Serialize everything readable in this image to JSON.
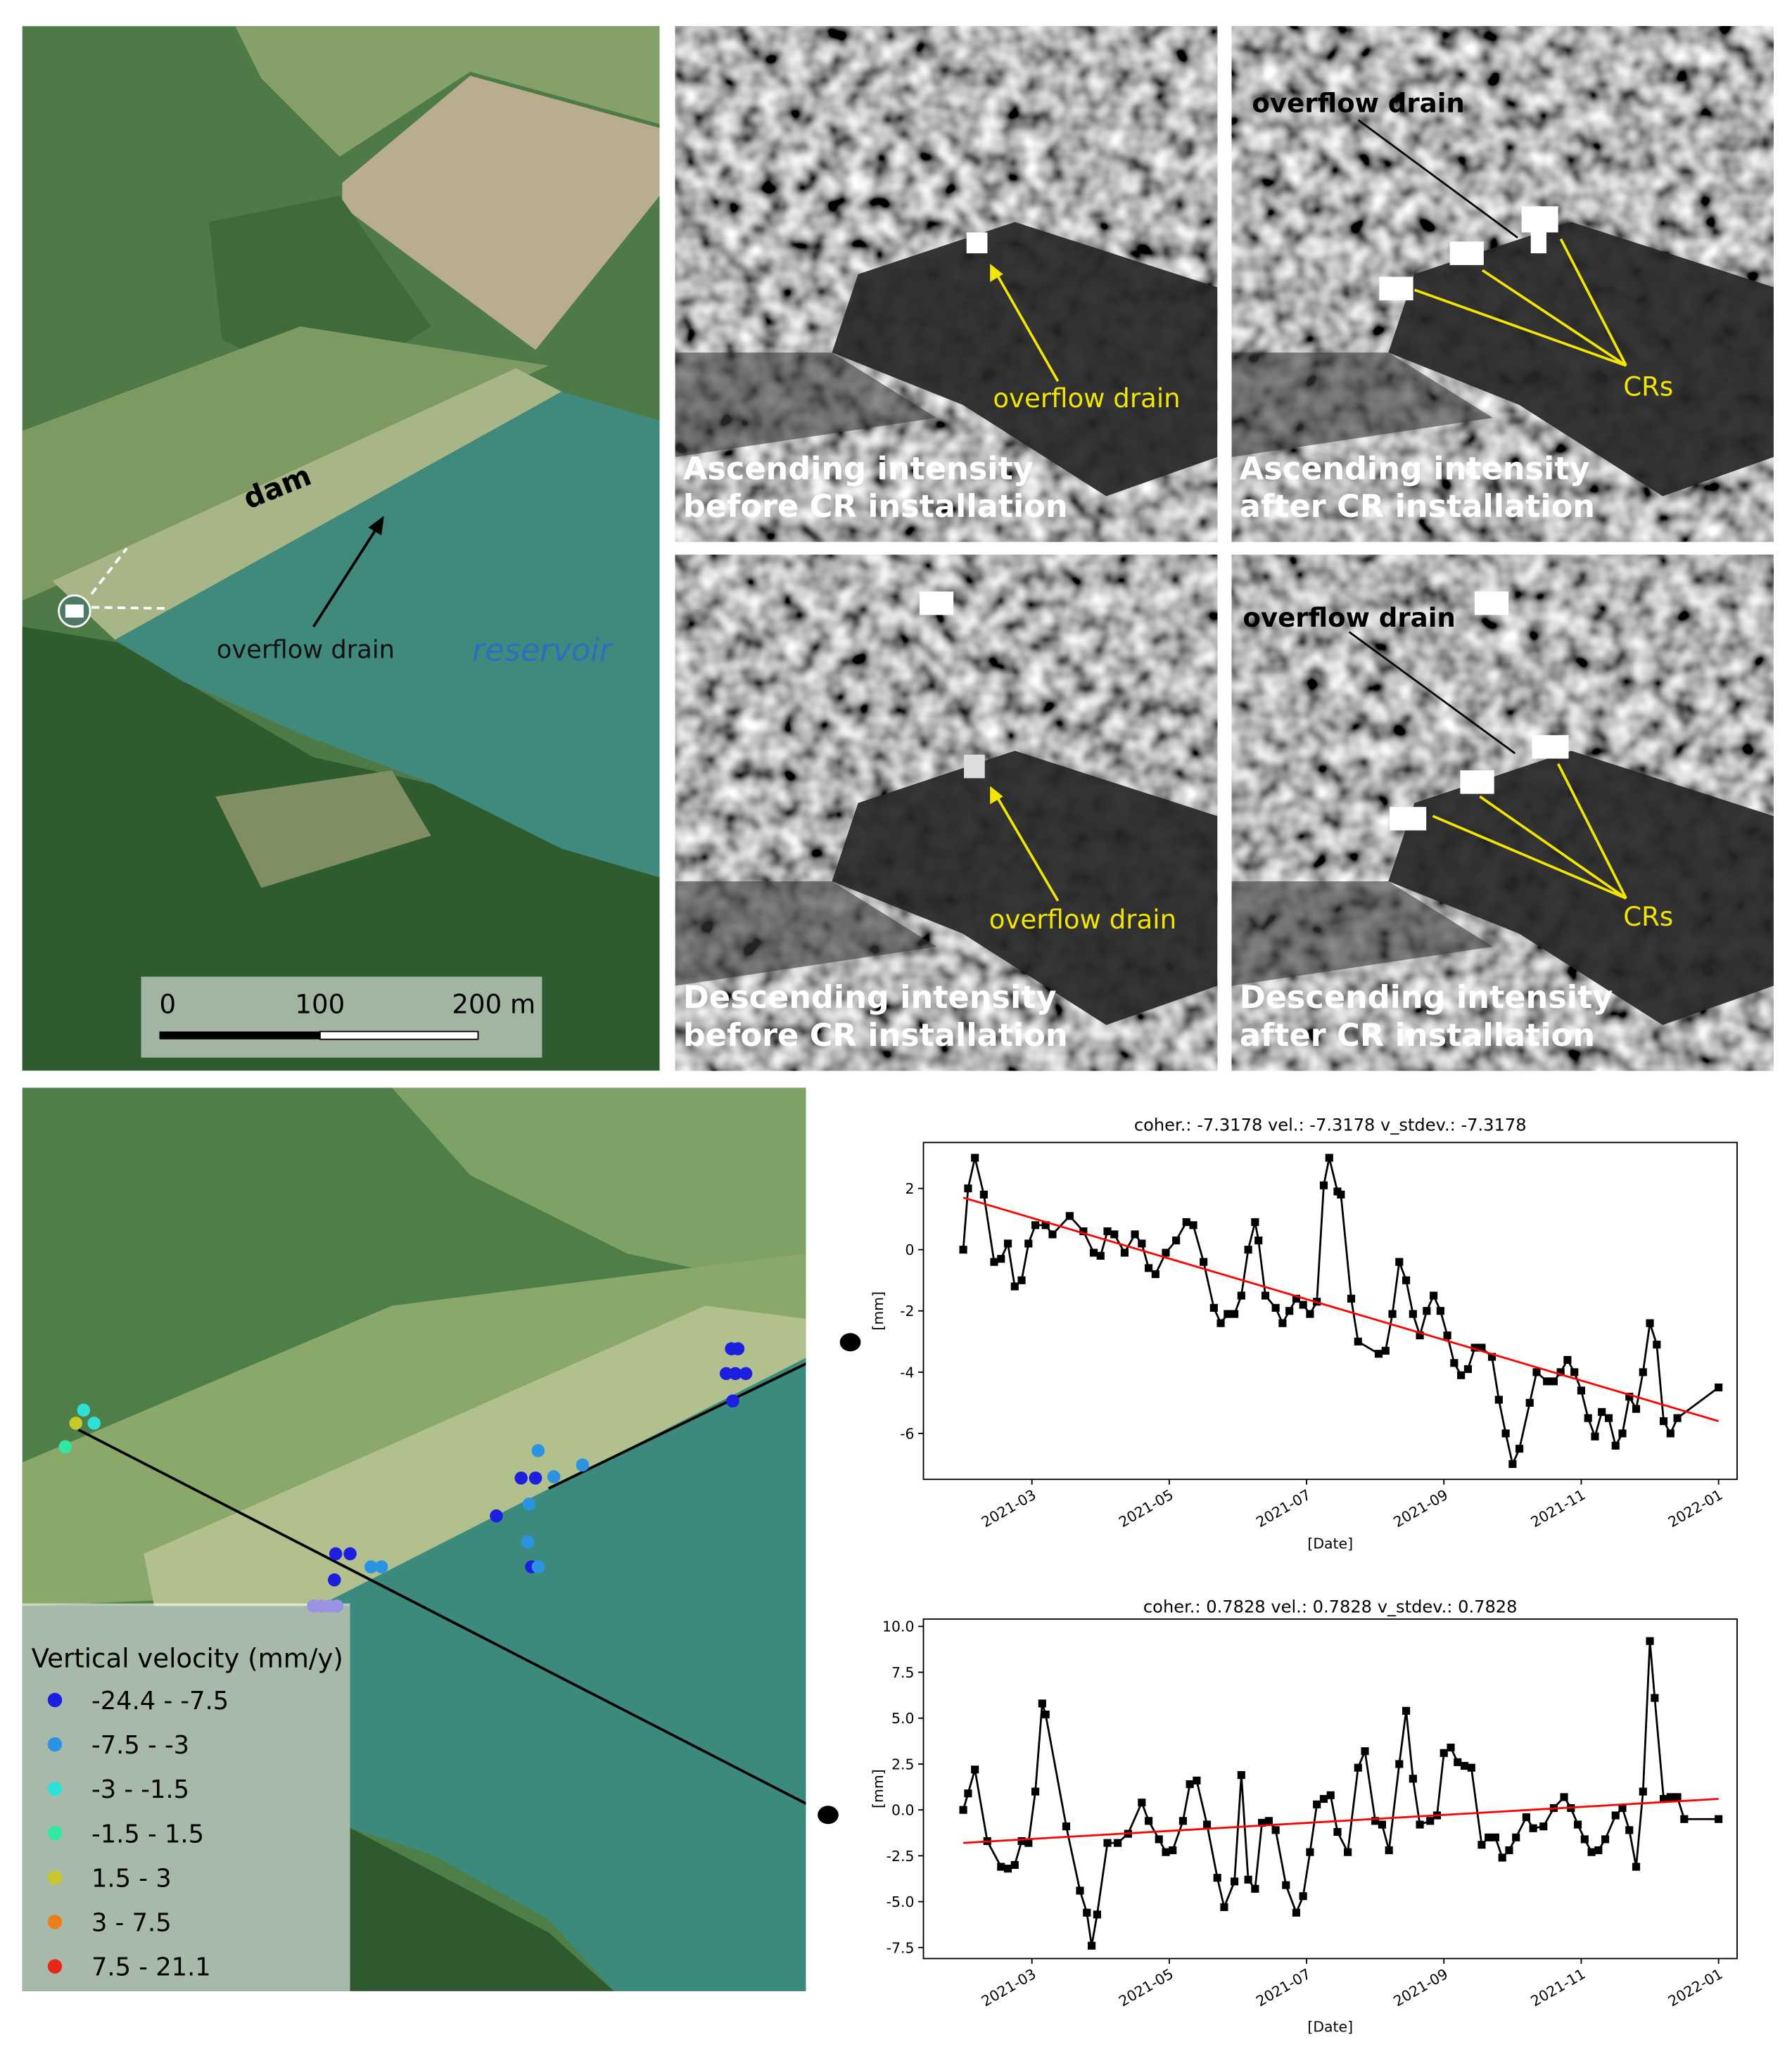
{
  "map_top": {
    "labels": {
      "dam": "dam",
      "overflow_drain": "overflow drain",
      "reservoir": "reservoir"
    },
    "scale_bar": [
      "0",
      "100",
      "200 m"
    ]
  },
  "sar_panels": [
    {
      "caption_lines": [
        "Ascending intensity",
        "before  CR installation"
      ],
      "annotations": [
        "overflow drain"
      ]
    },
    {
      "caption_lines": [
        "Ascending intensity",
        "after CR installation"
      ],
      "annotations": [
        "overflow drain",
        "CRs"
      ]
    },
    {
      "caption_lines": [
        "Descending intensity",
        "before  CR installation"
      ],
      "annotations": [
        "overflow drain"
      ]
    },
    {
      "caption_lines": [
        "Descending intensity",
        "after CR installation"
      ],
      "annotations": [
        "overflow drain",
        "CRs"
      ]
    }
  ],
  "map_bottom": {
    "legend_title": "Vertical velocity (mm/y)",
    "legend": [
      {
        "label": "-24.4 - -7.5",
        "color": "#1c1ee0"
      },
      {
        "label": "-7.5 - -3",
        "color": "#2a93e2"
      },
      {
        "label": "-3 - -1.5",
        "color": "#2ee0d6"
      },
      {
        "label": "-1.5 - 1.5",
        "color": "#30e8a2"
      },
      {
        "label": "1.5 - 3",
        "color": "#c8c82c"
      },
      {
        "label": "3 - 7.5",
        "color": "#f07d1c"
      },
      {
        "label": "7.5 - 21.1",
        "color": "#e8261a"
      }
    ]
  },
  "chart_data": [
    {
      "type": "line",
      "title": "coher.: -7.3178 vel.: -7.3178 v_stdev.: -7.3178",
      "x_label": "[Date]",
      "y_label": "[mm]",
      "xlim": [
        1.42,
        13.27
      ],
      "ylim": [
        -7.5,
        3.5
      ],
      "xticks": [
        {
          "value": 3,
          "label": "2021-03"
        },
        {
          "value": 5,
          "label": "2021-05"
        },
        {
          "value": 7,
          "label": "2021-07"
        },
        {
          "value": 9,
          "label": "2021-09"
        },
        {
          "value": 11,
          "label": "2021-11"
        },
        {
          "value": 13,
          "label": "2022-01"
        }
      ],
      "yticks": [
        2,
        0,
        -2,
        -4,
        -6
      ],
      "x": [
        2.0,
        2.07,
        2.17,
        2.3,
        2.45,
        2.55,
        2.65,
        2.75,
        2.85,
        2.95,
        3.05,
        3.2,
        3.3,
        3.55,
        3.75,
        3.9,
        4.0,
        4.1,
        4.2,
        4.35,
        4.5,
        4.6,
        4.7,
        4.8,
        4.95,
        5.1,
        5.25,
        5.35,
        5.5,
        5.65,
        5.75,
        5.85,
        5.95,
        6.05,
        6.15,
        6.25,
        6.3,
        6.4,
        6.55,
        6.65,
        6.75,
        6.85,
        6.95,
        7.05,
        7.15,
        7.25,
        7.33,
        7.45,
        7.5,
        7.65,
        7.75,
        8.05,
        8.15,
        8.25,
        8.35,
        8.45,
        8.55,
        8.65,
        8.75,
        8.85,
        8.95,
        9.05,
        9.15,
        9.25,
        9.35,
        9.45,
        9.55,
        9.7,
        9.8,
        9.9,
        10.0,
        10.1,
        10.25,
        10.35,
        10.5,
        10.6,
        10.7,
        10.8,
        10.9,
        11.0,
        11.1,
        11.2,
        11.3,
        11.4,
        11.5,
        11.6,
        11.7,
        11.8,
        11.9,
        12.0,
        12.1,
        12.2,
        12.3,
        12.4,
        13.0
      ],
      "series": [
        {
          "color": "#000000",
          "values": [
            0,
            2.0,
            3.0,
            1.8,
            -0.4,
            -0.3,
            0.2,
            -1.2,
            -1.0,
            0.2,
            0.8,
            0.8,
            0.5,
            1.1,
            0.6,
            -0.1,
            -0.2,
            0.6,
            0.5,
            -0.1,
            0.5,
            0.2,
            -0.6,
            -0.8,
            -0.1,
            0.3,
            0.9,
            0.8,
            -0.4,
            -1.9,
            -2.4,
            -2.1,
            -2.1,
            -1.5,
            0.0,
            0.9,
            0.3,
            -1.5,
            -1.9,
            -2.4,
            -2.0,
            -1.6,
            -1.8,
            -2.1,
            -1.7,
            2.1,
            3.0,
            1.9,
            1.8,
            -1.6,
            -3.0,
            -3.4,
            -3.3,
            -2.1,
            -0.4,
            -1.0,
            -2.1,
            -2.8,
            -2.0,
            -1.5,
            -2.0,
            -2.8,
            -3.7,
            -4.1,
            -3.9,
            -3.2,
            -3.2,
            -3.5,
            -4.9,
            -6.0,
            -7.0,
            -6.5,
            -5.0,
            -4.0,
            -4.3,
            -4.3,
            -4.0,
            -3.6,
            -4.0,
            -4.6,
            -5.5,
            -6.1,
            -5.3,
            -5.5,
            -6.4,
            -6.0,
            -4.8,
            -5.2,
            -4.0,
            -2.4,
            -3.1,
            -5.6,
            -6.0,
            -5.5,
            -4.5
          ]
        }
      ],
      "trend": {
        "color": "#ff0000",
        "x": [
          2.0,
          13.0
        ],
        "values": [
          1.7,
          -5.6
        ]
      }
    },
    {
      "type": "line",
      "title": "coher.: 0.7828 vel.: 0.7828 v_stdev.: 0.7828",
      "x_label": "[Date]",
      "y_label": "[mm]",
      "xlim": [
        1.42,
        13.27
      ],
      "ylim": [
        -8.1,
        10.4
      ],
      "xticks": [
        {
          "value": 3,
          "label": "2021-03"
        },
        {
          "value": 5,
          "label": "2021-05"
        },
        {
          "value": 7,
          "label": "2021-07"
        },
        {
          "value": 9,
          "label": "2021-09"
        },
        {
          "value": 11,
          "label": "2021-11"
        },
        {
          "value": 13,
          "label": "2022-01"
        }
      ],
      "yticks": [
        {
          "value": 10,
          "label": "10.0"
        },
        7.5,
        {
          "value": 5,
          "label": "5.0"
        },
        2.5,
        {
          "value": 0,
          "label": "0.0"
        },
        -2.5,
        {
          "value": -5,
          "label": "-5.0"
        },
        -7.5
      ],
      "x": [
        2.0,
        2.07,
        2.17,
        2.35,
        2.55,
        2.65,
        2.75,
        2.85,
        2.95,
        3.05,
        3.15,
        3.2,
        3.5,
        3.7,
        3.8,
        3.87,
        3.95,
        4.1,
        4.25,
        4.4,
        4.6,
        4.7,
        4.85,
        4.95,
        5.05,
        5.2,
        5.3,
        5.4,
        5.55,
        5.7,
        5.8,
        5.95,
        6.05,
        6.15,
        6.25,
        6.35,
        6.45,
        6.55,
        6.7,
        6.85,
        6.95,
        7.05,
        7.15,
        7.25,
        7.35,
        7.45,
        7.6,
        7.75,
        7.85,
        8.0,
        8.1,
        8.2,
        8.35,
        8.45,
        8.55,
        8.65,
        8.8,
        8.9,
        9.0,
        9.1,
        9.2,
        9.3,
        9.4,
        9.55,
        9.65,
        9.75,
        9.85,
        9.95,
        10.05,
        10.2,
        10.3,
        10.45,
        10.6,
        10.75,
        10.85,
        10.95,
        11.05,
        11.15,
        11.25,
        11.35,
        11.5,
        11.6,
        11.7,
        11.8,
        11.9,
        12.0,
        12.07,
        12.2,
        12.3,
        12.4,
        12.5,
        13.0
      ],
      "series": [
        {
          "color": "#000000",
          "values": [
            0.0,
            0.9,
            2.2,
            -1.7,
            -3.1,
            -3.2,
            -3.0,
            -1.7,
            -1.8,
            1.0,
            5.8,
            5.2,
            -0.9,
            -4.4,
            -5.6,
            -7.4,
            -5.7,
            -1.8,
            -1.8,
            -1.3,
            0.4,
            -0.6,
            -1.6,
            -2.3,
            -2.2,
            -0.6,
            1.4,
            1.6,
            -0.8,
            -3.7,
            -5.3,
            -3.9,
            1.9,
            -3.8,
            -4.3,
            -0.7,
            -0.6,
            -1.1,
            -4.1,
            -5.6,
            -4.7,
            -2.3,
            0.3,
            0.6,
            0.8,
            -1.2,
            -2.3,
            2.3,
            3.2,
            -0.6,
            -0.8,
            -2.2,
            2.5,
            5.4,
            1.7,
            -0.8,
            -0.6,
            -0.3,
            3.1,
            3.4,
            2.6,
            2.4,
            2.3,
            -1.9,
            -1.5,
            -1.5,
            -2.6,
            -2.2,
            -1.5,
            -0.4,
            -1.0,
            -0.9,
            0.1,
            0.7,
            0.1,
            -0.8,
            -1.6,
            -2.3,
            -2.2,
            -1.6,
            -0.3,
            0.1,
            -1.1,
            -3.1,
            1.0,
            9.2,
            6.1,
            0.6,
            0.7,
            0.7,
            -0.5,
            -0.5
          ]
        }
      ],
      "trend": {
        "color": "#ff0000",
        "x": [
          2.0,
          13.0
        ],
        "values": [
          -1.8,
          0.6
        ]
      }
    }
  ]
}
